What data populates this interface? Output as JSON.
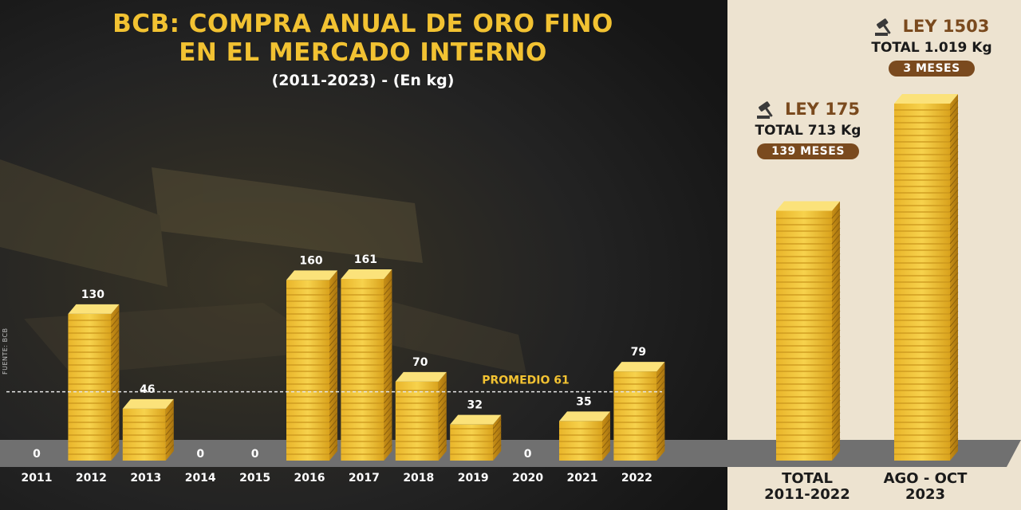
{
  "header": {
    "title_line1": "BCB: COMPRA ANUAL DE ORO FINO",
    "title_line2": "EN EL MERCADO INTERNO",
    "subtitle": "(2011-2023) - (En kg)",
    "source": "FUENTE: BCB"
  },
  "chart_data": [
    {
      "type": "bar",
      "title": "BCB: COMPRA ANUAL DE ORO FINO EN EL MERCADO INTERNO",
      "subtitle": "(2011-2023) - (En kg)",
      "categories": [
        "2011",
        "2012",
        "2013",
        "2014",
        "2015",
        "2016",
        "2017",
        "2018",
        "2019",
        "2020",
        "2021",
        "2022"
      ],
      "values": [
        0,
        130,
        46,
        0,
        0,
        160,
        161,
        70,
        32,
        0,
        35,
        79
      ],
      "ylim": [
        0,
        165
      ],
      "reference_line": {
        "label": "PROMEDIO 61",
        "value": 61
      }
    },
    {
      "type": "bar",
      "categories": [
        {
          "line1": "TOTAL",
          "line2": "2011-2022"
        },
        {
          "line1": "AGO - OCT",
          "line2": "2023"
        }
      ],
      "values": [
        713,
        1019
      ],
      "ylim": [
        0,
        1019
      ],
      "annotations": [
        {
          "law": "LEY 175",
          "total": "TOTAL 713 Kg",
          "period": "139 MESES"
        },
        {
          "law": "LEY 1503",
          "total": "TOTAL 1.019 Kg",
          "period": "3 MESES"
        }
      ]
    }
  ],
  "colors": {
    "title": "#f2c232",
    "gold": "#f0c43a",
    "panel_bg": "#ede3d0",
    "accent_brown": "#7a4a1e",
    "floor": "#707070"
  }
}
